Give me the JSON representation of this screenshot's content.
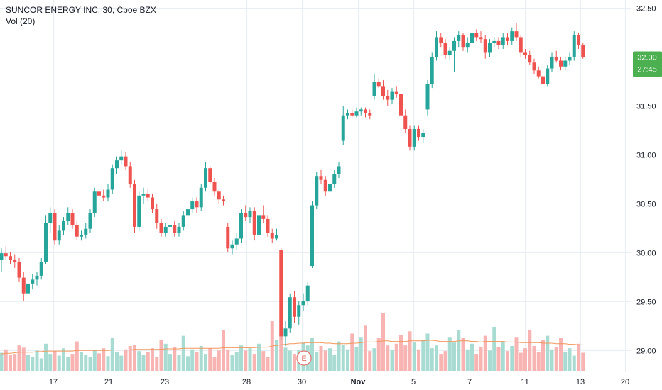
{
  "colors": {
    "up": "#26a69a",
    "down": "#ef5350",
    "volume_up": "#a8dcd3",
    "volume_down": "#f7b4b2",
    "ma": "#f4975a",
    "grid": "#e9eef4",
    "price_line": "#4caf50",
    "badge": "#4caf50",
    "earnings": "#e57373"
  },
  "legend": {
    "symbol_line": "SUNCOR ENERGY INC, 30, Cboe BZX",
    "volume_line": "Vol (20)"
  },
  "price_badge": {
    "price": "32.00",
    "countdown": "27:45"
  },
  "earnings_marker": {
    "label": "E",
    "date_index": 11
  },
  "chart_data": {
    "type": "candlestick",
    "y_ticks": [
      "32.50",
      "32.00",
      "31.50",
      "31.00",
      "30.50",
      "30.00",
      "29.50",
      "29.00"
    ],
    "y_tick_values": [
      32.5,
      32.0,
      31.5,
      31.0,
      30.5,
      30.0,
      29.5,
      29.0
    ],
    "ylim": [
      28.78,
      32.58
    ],
    "x_ticks": [
      "17",
      "21",
      "23",
      "28",
      "30",
      "Nov",
      "5",
      "7",
      "11",
      "13",
      "20"
    ],
    "last_price": 32.0,
    "candles": [
      {
        "o": 29.92,
        "h": 30.04,
        "l": 29.8,
        "c": 29.99
      },
      {
        "o": 29.99,
        "h": 30.06,
        "l": 29.92,
        "c": 29.96
      },
      {
        "o": 29.96,
        "h": 30.0,
        "l": 29.88,
        "c": 29.92
      },
      {
        "o": 29.92,
        "h": 29.98,
        "l": 29.84,
        "c": 29.9
      },
      {
        "o": 29.9,
        "h": 29.94,
        "l": 29.7,
        "c": 29.74
      },
      {
        "o": 29.74,
        "h": 29.8,
        "l": 29.5,
        "c": 29.58
      },
      {
        "o": 29.58,
        "h": 29.72,
        "l": 29.54,
        "c": 29.68
      },
      {
        "o": 29.68,
        "h": 29.78,
        "l": 29.62,
        "c": 29.72
      },
      {
        "o": 29.72,
        "h": 29.8,
        "l": 29.66,
        "c": 29.76
      },
      {
        "o": 29.76,
        "h": 29.94,
        "l": 29.72,
        "c": 29.9
      },
      {
        "o": 29.9,
        "h": 30.38,
        "l": 29.88,
        "c": 30.3
      },
      {
        "o": 30.3,
        "h": 30.46,
        "l": 30.2,
        "c": 30.4
      },
      {
        "o": 30.4,
        "h": 30.44,
        "l": 30.08,
        "c": 30.12
      },
      {
        "o": 30.12,
        "h": 30.28,
        "l": 30.08,
        "c": 30.22
      },
      {
        "o": 30.22,
        "h": 30.36,
        "l": 30.18,
        "c": 30.32
      },
      {
        "o": 30.32,
        "h": 30.46,
        "l": 30.28,
        "c": 30.4
      },
      {
        "o": 30.4,
        "h": 30.44,
        "l": 30.24,
        "c": 30.28
      },
      {
        "o": 30.28,
        "h": 30.32,
        "l": 30.12,
        "c": 30.16
      },
      {
        "o": 30.16,
        "h": 30.22,
        "l": 30.12,
        "c": 30.18
      },
      {
        "o": 30.18,
        "h": 30.3,
        "l": 30.14,
        "c": 30.24
      },
      {
        "o": 30.24,
        "h": 30.44,
        "l": 30.2,
        "c": 30.4
      },
      {
        "o": 30.4,
        "h": 30.66,
        "l": 30.36,
        "c": 30.62
      },
      {
        "o": 30.62,
        "h": 30.66,
        "l": 30.54,
        "c": 30.58
      },
      {
        "o": 30.58,
        "h": 30.64,
        "l": 30.52,
        "c": 30.56
      },
      {
        "o": 30.56,
        "h": 30.7,
        "l": 30.52,
        "c": 30.64
      },
      {
        "o": 30.64,
        "h": 30.9,
        "l": 30.6,
        "c": 30.86
      },
      {
        "o": 30.86,
        "h": 30.98,
        "l": 30.8,
        "c": 30.94
      },
      {
        "o": 30.94,
        "h": 31.04,
        "l": 30.9,
        "c": 30.98
      },
      {
        "o": 30.98,
        "h": 31.02,
        "l": 30.84,
        "c": 30.88
      },
      {
        "o": 30.88,
        "h": 30.92,
        "l": 30.66,
        "c": 30.7
      },
      {
        "o": 30.7,
        "h": 30.74,
        "l": 30.2,
        "c": 30.26
      },
      {
        "o": 30.26,
        "h": 30.62,
        "l": 30.22,
        "c": 30.58
      },
      {
        "o": 30.58,
        "h": 30.66,
        "l": 30.5,
        "c": 30.6
      },
      {
        "o": 30.6,
        "h": 30.64,
        "l": 30.52,
        "c": 30.56
      },
      {
        "o": 30.56,
        "h": 30.6,
        "l": 30.4,
        "c": 30.44
      },
      {
        "o": 30.44,
        "h": 30.5,
        "l": 30.24,
        "c": 30.3
      },
      {
        "o": 30.3,
        "h": 30.34,
        "l": 30.16,
        "c": 30.2
      },
      {
        "o": 30.2,
        "h": 30.3,
        "l": 30.16,
        "c": 30.26
      },
      {
        "o": 30.26,
        "h": 30.3,
        "l": 30.22,
        "c": 30.28
      },
      {
        "o": 30.28,
        "h": 30.32,
        "l": 30.16,
        "c": 30.2
      },
      {
        "o": 30.2,
        "h": 30.3,
        "l": 30.16,
        "c": 30.26
      },
      {
        "o": 30.26,
        "h": 30.42,
        "l": 30.22,
        "c": 30.38
      },
      {
        "o": 30.38,
        "h": 30.46,
        "l": 30.3,
        "c": 30.44
      },
      {
        "o": 30.44,
        "h": 30.56,
        "l": 30.4,
        "c": 30.52
      },
      {
        "o": 30.52,
        "h": 30.56,
        "l": 30.4,
        "c": 30.46
      },
      {
        "o": 30.46,
        "h": 30.7,
        "l": 30.42,
        "c": 30.66
      },
      {
        "o": 30.66,
        "h": 30.92,
        "l": 30.62,
        "c": 30.86
      },
      {
        "o": 30.86,
        "h": 30.88,
        "l": 30.7,
        "c": 30.72
      },
      {
        "o": 30.72,
        "h": 30.76,
        "l": 30.58,
        "c": 30.62
      },
      {
        "o": 30.62,
        "h": 30.64,
        "l": 30.5,
        "c": 30.54
      },
      {
        "o": 30.54,
        "h": 30.58,
        "l": 30.48,
        "c": 30.52
      },
      {
        "o": 30.26,
        "h": 30.3,
        "l": 30.0,
        "c": 30.04
      },
      {
        "o": 30.04,
        "h": 30.12,
        "l": 29.98,
        "c": 30.08
      },
      {
        "o": 30.08,
        "h": 30.2,
        "l": 30.02,
        "c": 30.14
      },
      {
        "o": 30.14,
        "h": 30.44,
        "l": 30.1,
        "c": 30.4
      },
      {
        "o": 30.4,
        "h": 30.48,
        "l": 30.32,
        "c": 30.36
      },
      {
        "o": 30.36,
        "h": 30.46,
        "l": 30.3,
        "c": 30.42
      },
      {
        "o": 30.42,
        "h": 30.46,
        "l": 30.12,
        "c": 30.18
      },
      {
        "o": 30.18,
        "h": 30.42,
        "l": 30.0,
        "c": 30.38
      },
      {
        "o": 30.38,
        "h": 30.48,
        "l": 30.3,
        "c": 30.34
      },
      {
        "o": 30.34,
        "h": 30.38,
        "l": 30.16,
        "c": 30.2
      },
      {
        "o": 30.2,
        "h": 30.24,
        "l": 30.1,
        "c": 30.14
      },
      {
        "o": 30.14,
        "h": 30.24,
        "l": 30.12,
        "c": 30.18
      },
      {
        "o": 30.02,
        "h": 30.04,
        "l": 29.1,
        "c": 29.14
      },
      {
        "o": 29.14,
        "h": 29.3,
        "l": 29.04,
        "c": 29.22
      },
      {
        "o": 29.22,
        "h": 29.58,
        "l": 29.18,
        "c": 29.54
      },
      {
        "o": 29.54,
        "h": 29.6,
        "l": 29.28,
        "c": 29.34
      },
      {
        "o": 29.34,
        "h": 29.5,
        "l": 29.26,
        "c": 29.46
      },
      {
        "o": 29.46,
        "h": 29.58,
        "l": 29.4,
        "c": 29.5
      },
      {
        "o": 29.5,
        "h": 29.7,
        "l": 29.46,
        "c": 29.66
      },
      {
        "o": 29.86,
        "h": 30.52,
        "l": 29.84,
        "c": 30.48
      },
      {
        "o": 30.48,
        "h": 30.82,
        "l": 30.44,
        "c": 30.78
      },
      {
        "o": 30.78,
        "h": 30.84,
        "l": 30.7,
        "c": 30.74
      },
      {
        "o": 30.74,
        "h": 30.78,
        "l": 30.58,
        "c": 30.62
      },
      {
        "o": 30.62,
        "h": 30.74,
        "l": 30.58,
        "c": 30.7
      },
      {
        "o": 30.7,
        "h": 30.84,
        "l": 30.66,
        "c": 30.8
      },
      {
        "o": 30.8,
        "h": 30.92,
        "l": 30.76,
        "c": 30.88
      },
      {
        "o": 31.14,
        "h": 31.5,
        "l": 31.1,
        "c": 31.4
      },
      {
        "o": 31.4,
        "h": 31.46,
        "l": 31.36,
        "c": 31.42
      },
      {
        "o": 31.42,
        "h": 31.46,
        "l": 31.38,
        "c": 31.4
      },
      {
        "o": 31.4,
        "h": 31.48,
        "l": 31.38,
        "c": 31.44
      },
      {
        "o": 31.44,
        "h": 31.48,
        "l": 31.4,
        "c": 31.46
      },
      {
        "o": 31.46,
        "h": 31.48,
        "l": 31.38,
        "c": 31.42
      },
      {
        "o": 31.42,
        "h": 31.46,
        "l": 31.36,
        "c": 31.4
      },
      {
        "o": 31.6,
        "h": 31.82,
        "l": 31.56,
        "c": 31.74
      },
      {
        "o": 31.74,
        "h": 31.78,
        "l": 31.68,
        "c": 31.7
      },
      {
        "o": 31.7,
        "h": 31.76,
        "l": 31.56,
        "c": 31.6
      },
      {
        "o": 31.6,
        "h": 31.66,
        "l": 31.5,
        "c": 31.56
      },
      {
        "o": 31.56,
        "h": 31.68,
        "l": 31.52,
        "c": 31.64
      },
      {
        "o": 31.64,
        "h": 31.7,
        "l": 31.58,
        "c": 31.62
      },
      {
        "o": 31.62,
        "h": 31.66,
        "l": 31.36,
        "c": 31.4
      },
      {
        "o": 31.4,
        "h": 31.46,
        "l": 31.22,
        "c": 31.26
      },
      {
        "o": 31.26,
        "h": 31.3,
        "l": 31.04,
        "c": 31.08
      },
      {
        "o": 31.08,
        "h": 31.3,
        "l": 31.04,
        "c": 31.26
      },
      {
        "o": 31.26,
        "h": 31.3,
        "l": 31.14,
        "c": 31.18
      },
      {
        "o": 31.18,
        "h": 31.26,
        "l": 31.12,
        "c": 31.22
      },
      {
        "o": 31.46,
        "h": 31.76,
        "l": 31.4,
        "c": 31.72
      },
      {
        "o": 31.72,
        "h": 32.04,
        "l": 31.68,
        "c": 32.0
      },
      {
        "o": 32.0,
        "h": 32.26,
        "l": 31.96,
        "c": 32.2
      },
      {
        "o": 32.2,
        "h": 32.24,
        "l": 32.1,
        "c": 32.14
      },
      {
        "o": 32.14,
        "h": 32.18,
        "l": 31.98,
        "c": 32.02
      },
      {
        "o": 32.02,
        "h": 32.1,
        "l": 31.96,
        "c": 32.06
      },
      {
        "o": 32.06,
        "h": 32.2,
        "l": 31.84,
        "c": 32.16
      },
      {
        "o": 32.16,
        "h": 32.26,
        "l": 32.1,
        "c": 32.22
      },
      {
        "o": 32.22,
        "h": 32.24,
        "l": 32.06,
        "c": 32.1
      },
      {
        "o": 32.1,
        "h": 32.2,
        "l": 32.04,
        "c": 32.14
      },
      {
        "o": 32.14,
        "h": 32.28,
        "l": 32.1,
        "c": 32.24
      },
      {
        "o": 32.24,
        "h": 32.28,
        "l": 32.16,
        "c": 32.2
      },
      {
        "o": 32.2,
        "h": 32.26,
        "l": 32.14,
        "c": 32.18
      },
      {
        "o": 32.18,
        "h": 32.22,
        "l": 31.98,
        "c": 32.04
      },
      {
        "o": 32.04,
        "h": 32.18,
        "l": 32.0,
        "c": 32.14
      },
      {
        "o": 32.14,
        "h": 32.2,
        "l": 32.1,
        "c": 32.16
      },
      {
        "o": 32.16,
        "h": 32.2,
        "l": 32.08,
        "c": 32.12
      },
      {
        "o": 32.12,
        "h": 32.24,
        "l": 32.08,
        "c": 32.2
      },
      {
        "o": 32.2,
        "h": 32.24,
        "l": 32.12,
        "c": 32.16
      },
      {
        "o": 32.16,
        "h": 32.3,
        "l": 32.12,
        "c": 32.26
      },
      {
        "o": 32.26,
        "h": 32.34,
        "l": 32.16,
        "c": 32.2
      },
      {
        "o": 32.2,
        "h": 32.22,
        "l": 32.0,
        "c": 32.04
      },
      {
        "o": 32.04,
        "h": 32.08,
        "l": 31.98,
        "c": 32.02
      },
      {
        "o": 32.02,
        "h": 32.06,
        "l": 31.92,
        "c": 31.94
      },
      {
        "o": 31.94,
        "h": 31.98,
        "l": 31.82,
        "c": 31.86
      },
      {
        "o": 31.86,
        "h": 31.9,
        "l": 31.78,
        "c": 31.8
      },
      {
        "o": 31.8,
        "h": 31.82,
        "l": 31.6,
        "c": 31.72
      },
      {
        "o": 31.72,
        "h": 31.92,
        "l": 31.7,
        "c": 31.88
      },
      {
        "o": 31.88,
        "h": 32.04,
        "l": 31.84,
        "c": 32.0
      },
      {
        "o": 32.0,
        "h": 32.06,
        "l": 31.94,
        "c": 31.96
      },
      {
        "o": 31.96,
        "h": 32.0,
        "l": 31.86,
        "c": 31.9
      },
      {
        "o": 31.9,
        "h": 32.0,
        "l": 31.86,
        "c": 31.96
      },
      {
        "o": 31.96,
        "h": 32.04,
        "l": 31.92,
        "c": 32.0
      },
      {
        "o": 32.0,
        "h": 32.26,
        "l": 31.96,
        "c": 32.22
      },
      {
        "o": 32.22,
        "h": 32.24,
        "l": 32.08,
        "c": 32.12
      },
      {
        "o": 32.12,
        "h": 32.14,
        "l": 31.98,
        "c": 32.0
      }
    ],
    "volumes": [
      32,
      38,
      28,
      30,
      45,
      41,
      28,
      25,
      36,
      22,
      48,
      30,
      35,
      27,
      40,
      25,
      30,
      52,
      33,
      28,
      24,
      36,
      31,
      40,
      26,
      58,
      33,
      27,
      38,
      44,
      46,
      35,
      28,
      33,
      40,
      25,
      55,
      48,
      30,
      42,
      28,
      62,
      26,
      38,
      33,
      44,
      30,
      40,
      24,
      36,
      72,
      38,
      28,
      33,
      45,
      36,
      40,
      30,
      48,
      35,
      25,
      88,
      55,
      64,
      41,
      36,
      30,
      37,
      50,
      45,
      58,
      33,
      44,
      36,
      40,
      28,
      52,
      46,
      38,
      66,
      42,
      60,
      80,
      35,
      40,
      58,
      103,
      45,
      37,
      48,
      63,
      45,
      70,
      50,
      38,
      55,
      66,
      40,
      45,
      30,
      35,
      60,
      50,
      72,
      58,
      38,
      48,
      30,
      42,
      62,
      36,
      78,
      42,
      52,
      35,
      44,
      60,
      32,
      40,
      72,
      44,
      33,
      55,
      62,
      38,
      42,
      58,
      34,
      40,
      27,
      48,
      32,
      63,
      40,
      52,
      34,
      30,
      45,
      28
    ],
    "volume_ma": [
      30,
      31,
      31,
      32,
      33,
      33,
      33,
      33,
      34,
      34,
      35,
      35,
      35,
      35,
      35,
      35,
      35,
      36,
      36,
      36,
      36,
      36,
      36,
      36,
      36,
      37,
      37,
      37,
      37,
      37,
      38,
      38,
      38,
      38,
      38,
      38,
      38,
      39,
      39,
      39,
      39,
      40,
      40,
      40,
      40,
      40,
      40,
      40,
      40,
      40,
      41,
      41,
      41,
      41,
      41,
      41,
      41,
      41,
      42,
      42,
      42,
      44,
      45,
      46,
      47,
      48,
      48,
      49,
      49,
      50,
      50,
      50,
      50,
      49,
      49,
      48,
      48,
      48,
      48,
      49,
      49,
      50,
      51,
      51,
      51,
      52,
      53,
      53,
      52,
      52,
      52,
      52,
      53,
      53,
      53,
      53,
      54,
      54,
      53,
      52,
      52,
      52,
      52,
      53,
      53,
      53,
      52,
      52,
      51,
      52,
      52,
      52,
      52,
      52,
      51,
      51,
      51,
      50,
      50,
      50,
      50,
      50,
      49,
      49,
      49,
      48,
      48,
      48,
      47,
      47,
      46,
      46,
      46,
      45,
      45,
      45,
      44,
      44,
      44
    ]
  }
}
